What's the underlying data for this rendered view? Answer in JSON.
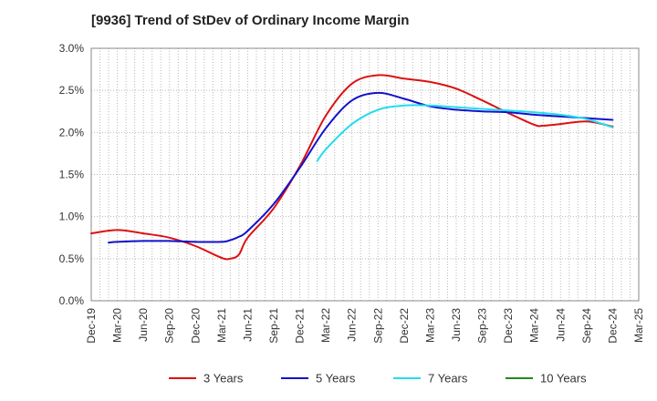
{
  "chart_data": {
    "type": "line",
    "title": "[9936]  Trend of StDev of Ordinary Income Margin",
    "xlabel": "",
    "ylabel": "",
    "ylim": [
      0,
      3.0
    ],
    "y_ticks": [
      "0.0%",
      "0.5%",
      "1.0%",
      "1.5%",
      "2.0%",
      "2.5%",
      "3.0%"
    ],
    "y_tick_values": [
      0,
      0.5,
      1.0,
      1.5,
      2.0,
      2.5,
      3.0
    ],
    "x_ticks": [
      "Dec-19",
      "Mar-20",
      "Jun-20",
      "Sep-20",
      "Dec-20",
      "Mar-21",
      "Jun-21",
      "Sep-21",
      "Dec-21",
      "Mar-22",
      "Jun-22",
      "Sep-22",
      "Dec-22",
      "Mar-23",
      "Jun-23",
      "Sep-23",
      "Dec-23",
      "Mar-24",
      "Jun-24",
      "Sep-24",
      "Dec-24",
      "Mar-25"
    ],
    "grid": true,
    "legend_position": "bottom",
    "series": [
      {
        "name": "3 Years",
        "color": "#dd1111",
        "points": [
          [
            "Dec-19",
            0.8
          ],
          [
            "Mar-20",
            0.84
          ],
          [
            "Jun-20",
            0.8
          ],
          [
            "Sep-20",
            0.75
          ],
          [
            "Dec-20",
            0.65
          ],
          [
            "Mar-21",
            0.51
          ],
          [
            "Apr-21",
            0.5
          ],
          [
            "May-21",
            0.55
          ],
          [
            "Jun-21",
            0.75
          ],
          [
            "Sep-21",
            1.1
          ],
          [
            "Dec-21",
            1.6
          ],
          [
            "Mar-22",
            2.2
          ],
          [
            "Jun-22",
            2.58
          ],
          [
            "Sep-22",
            2.68
          ],
          [
            "Dec-22",
            2.64
          ],
          [
            "Mar-23",
            2.6
          ],
          [
            "Jun-23",
            2.52
          ],
          [
            "Sep-23",
            2.38
          ],
          [
            "Dec-23",
            2.23
          ],
          [
            "Mar-24",
            2.09
          ],
          [
            "Apr-24",
            2.08
          ],
          [
            "Jun-24",
            2.1
          ],
          [
            "Sep-24",
            2.13
          ],
          [
            "Dec-24",
            2.07
          ]
        ]
      },
      {
        "name": "5 Years",
        "color": "#1111cc",
        "points": [
          [
            "Feb-20",
            0.69
          ],
          [
            "Mar-20",
            0.7
          ],
          [
            "Jun-20",
            0.71
          ],
          [
            "Sep-20",
            0.71
          ],
          [
            "Dec-20",
            0.7
          ],
          [
            "Mar-21",
            0.7
          ],
          [
            "Apr-21",
            0.72
          ],
          [
            "May-21",
            0.76
          ],
          [
            "Jun-21",
            0.83
          ],
          [
            "Sep-21",
            1.15
          ],
          [
            "Dec-21",
            1.58
          ],
          [
            "Mar-22",
            2.05
          ],
          [
            "Jun-22",
            2.38
          ],
          [
            "Sep-22",
            2.47
          ],
          [
            "Dec-22",
            2.4
          ],
          [
            "Mar-23",
            2.31
          ],
          [
            "Jun-23",
            2.27
          ],
          [
            "Sep-23",
            2.25
          ],
          [
            "Dec-23",
            2.24
          ],
          [
            "Mar-24",
            2.21
          ],
          [
            "Jun-24",
            2.19
          ],
          [
            "Sep-24",
            2.17
          ],
          [
            "Dec-24",
            2.15
          ]
        ]
      },
      {
        "name": "7 Years",
        "color": "#22ddee",
        "points": [
          [
            "Feb-22",
            1.66
          ],
          [
            "Mar-22",
            1.8
          ],
          [
            "Jun-22",
            2.1
          ],
          [
            "Sep-22",
            2.27
          ],
          [
            "Dec-22",
            2.32
          ],
          [
            "Mar-23",
            2.32
          ],
          [
            "Jun-23",
            2.3
          ],
          [
            "Sep-23",
            2.28
          ],
          [
            "Dec-23",
            2.26
          ],
          [
            "Mar-24",
            2.24
          ],
          [
            "Jun-24",
            2.21
          ],
          [
            "Sep-24",
            2.16
          ],
          [
            "Dec-24",
            2.06
          ]
        ]
      },
      {
        "name": "10 Years",
        "color": "#228822",
        "points": []
      }
    ]
  }
}
